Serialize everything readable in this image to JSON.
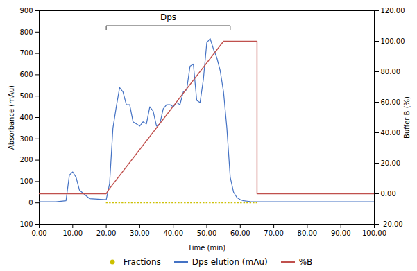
{
  "chart_data": {
    "type": "line",
    "xlabel": "Time (min)",
    "ylabel": "Absorbance (mAu)",
    "y2label": "Buffer B (%)",
    "xlim": [
      0,
      100
    ],
    "ylim": [
      -100,
      900
    ],
    "y2lim": [
      -20,
      120
    ],
    "xticks": [
      {
        "value": 0,
        "label": "0.00"
      },
      {
        "value": 10,
        "label": "10.00"
      },
      {
        "value": 20,
        "label": "20.00"
      },
      {
        "value": 30,
        "label": "30.00"
      },
      {
        "value": 40,
        "label": "40.00"
      },
      {
        "value": 50,
        "label": "50.00"
      },
      {
        "value": 60,
        "label": "60.00"
      },
      {
        "value": 70,
        "label": "70.00"
      },
      {
        "value": 80,
        "label": "80.00"
      },
      {
        "value": 90,
        "label": "90.00"
      },
      {
        "value": 100,
        "label": "100.00"
      }
    ],
    "yticks": [
      -100,
      0,
      100,
      200,
      300,
      400,
      500,
      600,
      700,
      800,
      900
    ],
    "y2ticks": [
      {
        "value": -20,
        "label": "-20.00"
      },
      {
        "value": 0,
        "label": "0.00"
      },
      {
        "value": 20,
        "label": "20.00"
      },
      {
        "value": 40,
        "label": "40.00"
      },
      {
        "value": 60,
        "label": "60.00"
      },
      {
        "value": 80,
        "label": "80.00"
      },
      {
        "value": 100,
        "label": "100.00"
      },
      {
        "value": 120,
        "label": "120.00"
      }
    ],
    "grid": false,
    "legend": "bottom",
    "annotations": [
      {
        "text": "Dps",
        "x": 38.5,
        "y": 855,
        "bracket_x": [
          20.0,
          57.0
        ],
        "bracket_y": 830,
        "bracket_y_end": 810
      }
    ],
    "series": [
      {
        "name": "Fractions",
        "color": "#CCC000",
        "line_style": "dotted",
        "x": [
          20,
          65
        ],
        "values": [
          0,
          0
        ]
      },
      {
        "name": "Dps elution (mAu)",
        "color": "#4472C4",
        "line_style": "solid",
        "x": [
          0,
          5,
          8,
          9,
          10,
          11,
          12,
          15,
          20,
          21,
          22,
          23,
          24,
          25,
          26,
          27,
          28,
          29,
          30,
          31,
          32,
          33,
          34,
          35,
          36,
          37,
          38,
          39,
          40,
          41,
          42,
          43,
          44,
          45,
          46,
          47,
          48,
          49,
          50,
          51,
          52,
          53,
          54,
          55,
          56,
          57,
          58,
          59,
          60,
          61,
          62,
          63,
          65,
          70,
          80,
          100
        ],
        "values": [
          5,
          5,
          10,
          130,
          145,
          120,
          60,
          20,
          15,
          90,
          350,
          450,
          540,
          520,
          460,
          460,
          380,
          370,
          360,
          380,
          370,
          450,
          430,
          360,
          370,
          440,
          460,
          460,
          450,
          470,
          460,
          520,
          530,
          640,
          650,
          480,
          470,
          580,
          750,
          770,
          720,
          680,
          620,
          520,
          350,
          120,
          50,
          25,
          15,
          10,
          8,
          6,
          5,
          5,
          5,
          5
        ]
      },
      {
        "name": "%B",
        "color": "#C0504D",
        "line_style": "solid",
        "axis": "y2",
        "x": [
          0,
          20,
          20.5,
          55,
          55,
          65,
          65,
          100
        ],
        "values": [
          0,
          0,
          2,
          100,
          100,
          100,
          0,
          0
        ]
      }
    ]
  }
}
